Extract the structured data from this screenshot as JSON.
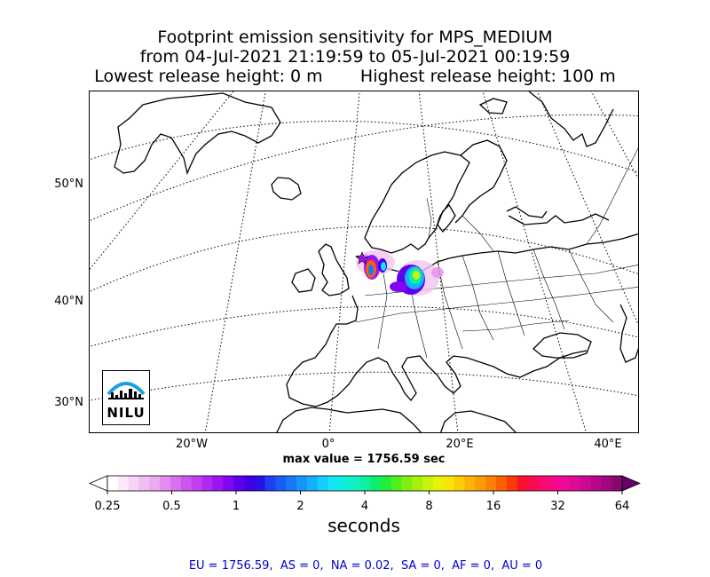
{
  "title": {
    "line1": "Footprint emission sensitivity for MPS_MEDIUM",
    "line2": "from 04-Jul-2021 21:19:59 to 05-Jul-2021 00:19:59",
    "line3": "Lowest release height: 0 m       Highest release height: 100 m"
  },
  "map": {
    "lat_labels": [
      "50°N",
      "40°N",
      "30°N"
    ],
    "lon_labels": [
      "20°W",
      "0°",
      "20°E",
      "40°E"
    ],
    "release_marker": "star-marker",
    "logo_text": "NILU"
  },
  "max_value_text": "max value = 1756.59 sec",
  "colorbar": {
    "tick_labels": [
      "0.25",
      "0.5",
      "1",
      "2",
      "4",
      "8",
      "16",
      "32",
      "64"
    ],
    "unit": "seconds",
    "colors": [
      "#ffffff",
      "#fbe8fb",
      "#f7d3f7",
      "#f2bdf2",
      "#ecaaf0",
      "#e38eee",
      "#d970ee",
      "#cf55f0",
      "#c040f2",
      "#b028f4",
      "#9b14f2",
      "#8008f0",
      "#5c00ee",
      "#3f00e6",
      "#2b0fe8",
      "#1f3ff2",
      "#1a5cf6",
      "#1579f8",
      "#1595fa",
      "#14b0fc",
      "#14cdfc",
      "#14e5f4",
      "#12ece0",
      "#10f0c2",
      "#0ef09c",
      "#0cee70",
      "#20ee3a",
      "#50ee1a",
      "#80ee10",
      "#a8f00c",
      "#c8f20a",
      "#e8f208",
      "#f8e406",
      "#fccc06",
      "#fcb404",
      "#fc9c04",
      "#fc8004",
      "#fc6004",
      "#fc3a08",
      "#fc1030",
      "#fc0a50",
      "#f80a70",
      "#f40a88",
      "#f00a98",
      "#e00a98",
      "#cc0a90",
      "#b8088a",
      "#a00880",
      "#880870"
    ],
    "under_color": "#ffffff",
    "over_color": "#660066"
  },
  "stats_text": "EU = 1756.59,  AS = 0,  NA = 0.02,  SA = 0,  AF = 0,  AU = 0"
}
